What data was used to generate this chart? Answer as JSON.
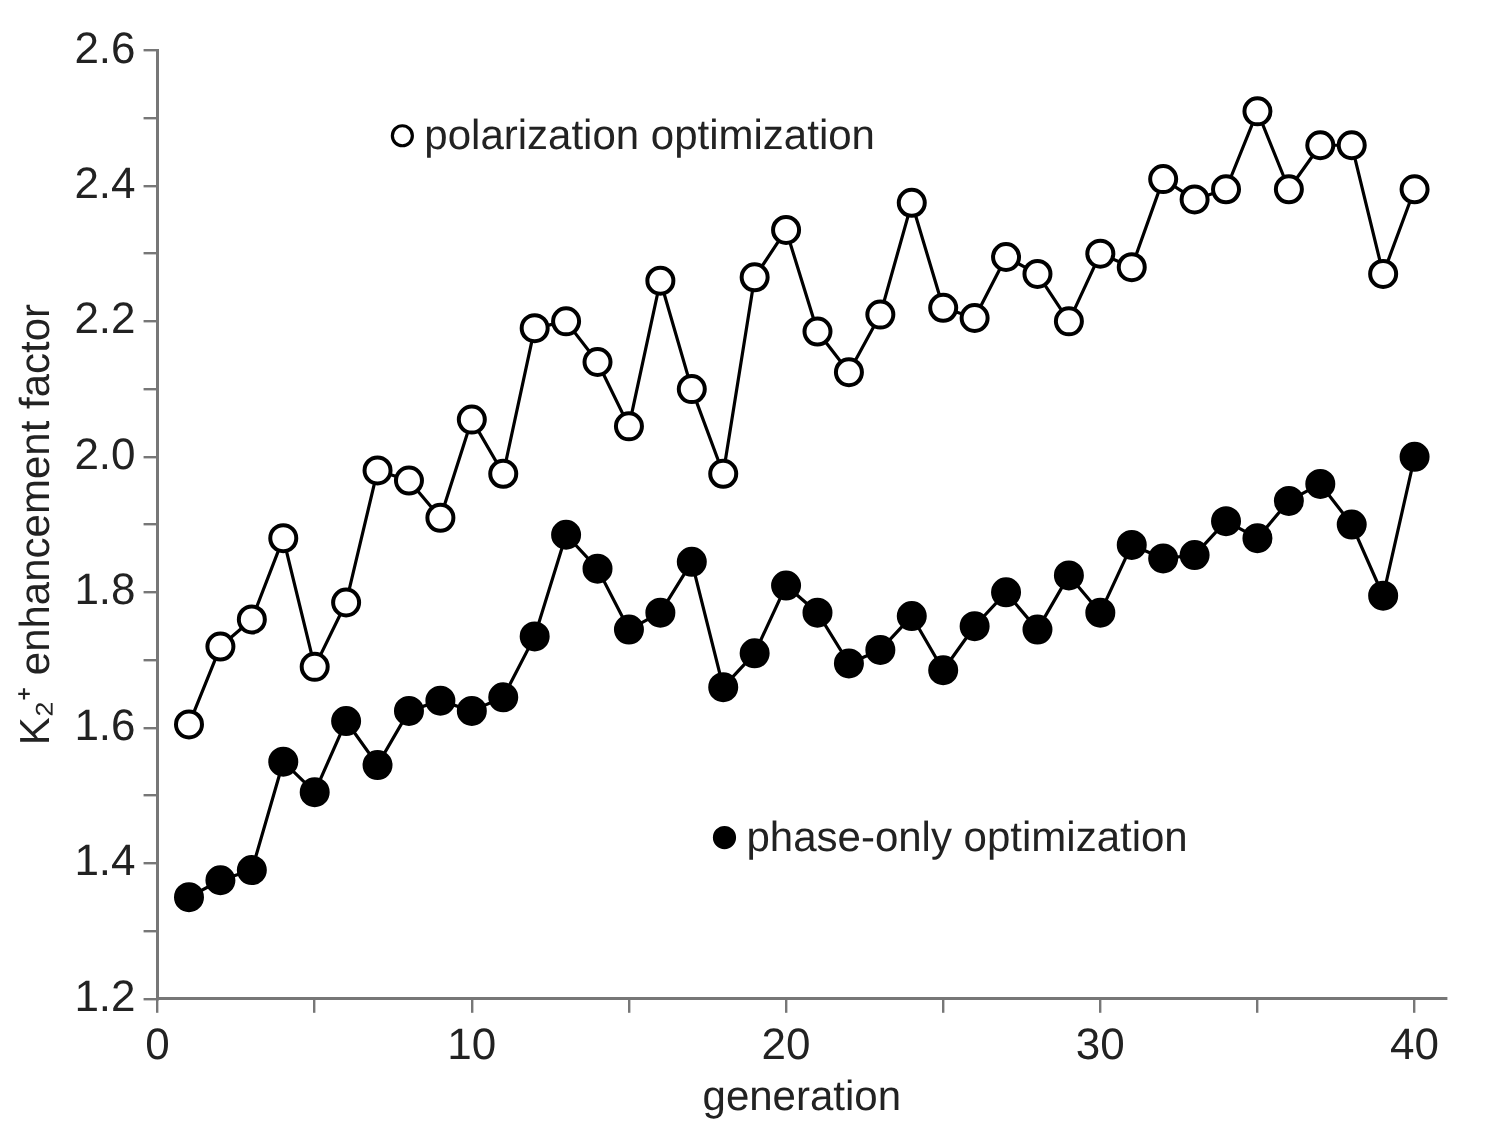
{
  "chart_data": {
    "type": "line",
    "xlabel": "generation",
    "ylabel": "K₂⁺ enhancement factor",
    "x": [
      1,
      2,
      3,
      4,
      5,
      6,
      7,
      8,
      9,
      10,
      11,
      12,
      13,
      14,
      15,
      16,
      17,
      18,
      19,
      20,
      21,
      22,
      23,
      24,
      25,
      26,
      27,
      28,
      29,
      30,
      31,
      32,
      33,
      34,
      35,
      36,
      37,
      38,
      39,
      40
    ],
    "series": [
      {
        "name": "polarization optimization",
        "color": "#000000",
        "values": [
          1.605,
          1.72,
          1.76,
          1.88,
          1.69,
          1.785,
          1.98,
          1.965,
          1.91,
          2.055,
          1.975,
          2.19,
          2.2,
          2.14,
          2.045,
          2.26,
          2.1,
          1.975,
          2.265,
          2.335,
          2.185,
          2.125,
          2.21,
          2.375,
          2.22,
          2.205,
          2.295,
          2.27,
          2.2,
          2.3,
          2.28,
          2.41,
          2.38,
          2.395,
          2.51,
          2.395,
          2.46,
          2.46,
          2.27,
          2.395
        ]
      },
      {
        "name": "phase-only optimization",
        "color": "#000000",
        "values": [
          1.35,
          1.375,
          1.39,
          1.55,
          1.505,
          1.61,
          1.545,
          1.625,
          1.64,
          1.625,
          1.645,
          1.735,
          1.885,
          1.835,
          1.745,
          1.77,
          1.845,
          1.66,
          1.71,
          1.81,
          1.77,
          1.695,
          1.715,
          1.765,
          1.685,
          1.75,
          1.8,
          1.745,
          1.825,
          1.77,
          1.87,
          1.85,
          1.855,
          1.905,
          1.88,
          1.935,
          1.96,
          1.9,
          1.795,
          2.0
        ]
      }
    ],
    "xlim": [
      0,
      41
    ],
    "xticks": [
      0,
      {
        "value": 5,
        "label": null
      },
      10,
      {
        "value": 15,
        "label": null
      },
      20,
      {
        "value": 25,
        "label": null
      },
      30,
      {
        "value": 35,
        "label": null
      },
      40
    ],
    "ylim": [
      1.2,
      2.6
    ],
    "yticks": [
      1.2,
      {
        "value": 1.3,
        "label": null
      },
      1.4,
      {
        "value": 1.5,
        "label": null
      },
      1.6,
      {
        "value": 1.7,
        "label": null
      },
      1.8,
      {
        "value": 1.9,
        "label": null
      },
      {
        "value": 2,
        "label": "2.0"
      },
      {
        "value": 2.1,
        "label": null
      },
      2.2,
      {
        "value": 2.3,
        "label": null
      },
      2.4,
      {
        "value": 2.5,
        "label": null
      },
      2.6
    ],
    "grid": false,
    "legend": "top left",
    "marker": "circle",
    "line_style": "solid"
  }
}
